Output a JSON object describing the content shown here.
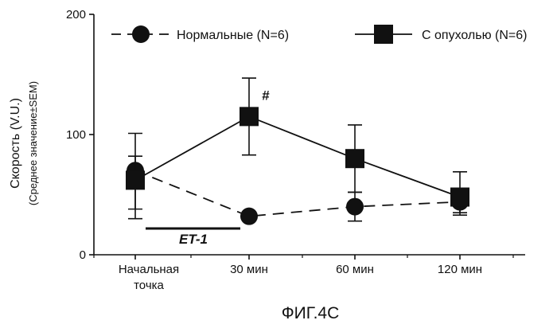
{
  "chart_data": {
    "type": "line",
    "caption": "ФИГ.4С",
    "ylabel": "Скорость (V.U.)",
    "ylabel_sub": "(Среднее значение±SEM)",
    "ylim": [
      0,
      200
    ],
    "yticks": [
      "0",
      "100",
      "200"
    ],
    "categories": [
      [
        "Начальная",
        "точка"
      ],
      [
        "30 мин"
      ],
      [
        "60 мин"
      ],
      [
        "120 мин"
      ]
    ],
    "series": [
      {
        "name": "Нормальные (N=6)",
        "marker": "circle",
        "line": "dashed",
        "values": [
          70,
          32,
          40,
          44
        ],
        "err_low": [
          30,
          null,
          28,
          33
        ],
        "err_high": [
          82,
          null,
          52,
          55
        ]
      },
      {
        "name": "С опухолью (N=6)",
        "marker": "square",
        "line": "solid",
        "values": [
          62,
          115,
          80,
          48
        ],
        "err_low": [
          38,
          83,
          52,
          35
        ],
        "err_high": [
          101,
          147,
          108,
          69
        ]
      }
    ],
    "annotations": {
      "bar_label": "ET-1",
      "significance": "#"
    },
    "grid": false,
    "legend_position": "top"
  }
}
